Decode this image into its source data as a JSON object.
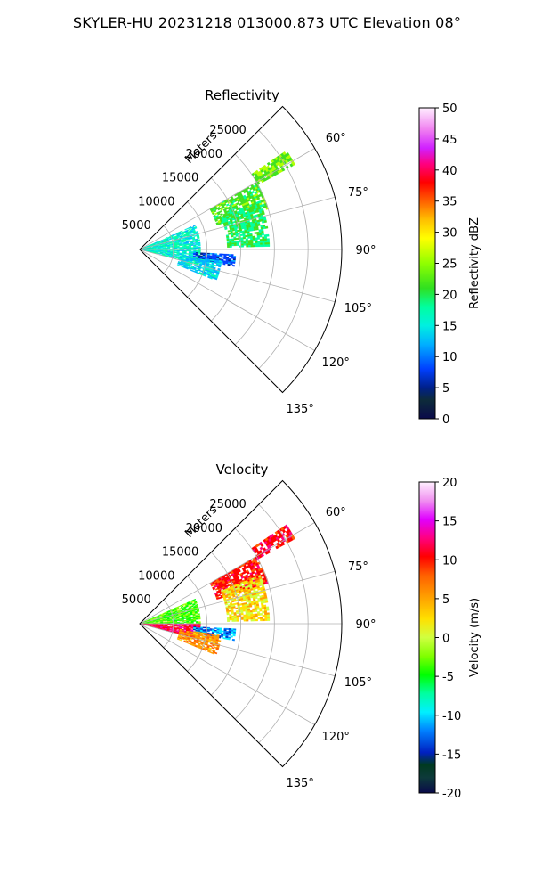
{
  "figure": {
    "suptitle": "SKYLER-HU  20231218  013000.873 UTC Elevation 08°"
  },
  "chart_data": [
    {
      "type": "heatmap",
      "projection": "polar-sector",
      "title": "Reflectivity",
      "radial_axis_label": "Meters",
      "radial_ticks": [
        5000,
        10000,
        15000,
        20000,
        25000
      ],
      "radial_range": [
        0,
        30000
      ],
      "angle_ticks": [
        "60°",
        "75°",
        "90°",
        "105°",
        "120°",
        "135°"
      ],
      "angle_tick_values": [
        60,
        75,
        90,
        105,
        120,
        135
      ],
      "angle_range": [
        45,
        135
      ],
      "grid": true,
      "colorbar": {
        "label": "Reflectivity dBZ",
        "range": [
          0,
          50
        ],
        "ticks": [
          0,
          5,
          10,
          15,
          20,
          25,
          30,
          35,
          40,
          45,
          50
        ],
        "colormap": "pyart_HomeyerRainbow"
      },
      "echo_regions": [
        {
          "az_range": [
            56,
            61
          ],
          "range_m": [
            20000,
            26000
          ],
          "value_dbz": 24
        },
        {
          "az_range": [
            60,
            72
          ],
          "range_m": [
            12000,
            20000
          ],
          "value_dbz": 22
        },
        {
          "az_range": [
            68,
            88
          ],
          "range_m": [
            13000,
            19000
          ],
          "value_dbz": 20
        },
        {
          "az_range": [
            66,
            104
          ],
          "range_m": [
            0,
            9000
          ],
          "value_dbz": 17
        },
        {
          "az_range": [
            93,
            100
          ],
          "range_m": [
            8000,
            14000
          ],
          "value_dbz": 10
        },
        {
          "az_range": [
            98,
            112
          ],
          "range_m": [
            6000,
            12000
          ],
          "value_dbz": 15
        }
      ]
    },
    {
      "type": "heatmap",
      "projection": "polar-sector",
      "title": "Velocity",
      "radial_axis_label": "Meters",
      "radial_ticks": [
        5000,
        10000,
        15000,
        20000,
        25000
      ],
      "radial_range": [
        0,
        30000
      ],
      "angle_ticks": [
        "60°",
        "75°",
        "90°",
        "105°",
        "120°",
        "135°"
      ],
      "angle_tick_values": [
        60,
        75,
        90,
        105,
        120,
        135
      ],
      "angle_range": [
        45,
        135
      ],
      "grid": true,
      "colorbar": {
        "label": "Velocity (m/s)",
        "range": [
          -20,
          20
        ],
        "ticks": [
          -20,
          -15,
          -10,
          -5,
          0,
          5,
          10,
          15,
          20
        ],
        "colormap": "pyart_BuDRd18"
      },
      "echo_regions": [
        {
          "az_range": [
            56,
            61
          ],
          "range_m": [
            20000,
            26000
          ],
          "value_ms": 11
        },
        {
          "az_range": [
            60,
            72
          ],
          "range_m": [
            12000,
            20000
          ],
          "value_ms": 10
        },
        {
          "az_range": [
            68,
            88
          ],
          "range_m": [
            13000,
            19000
          ],
          "value_ms": 2
        },
        {
          "az_range": [
            66,
            90
          ],
          "range_m": [
            0,
            9000
          ],
          "value_ms": -3
        },
        {
          "az_range": [
            90,
            104
          ],
          "range_m": [
            0,
            9000
          ],
          "value_ms": 12
        },
        {
          "az_range": [
            93,
            100
          ],
          "range_m": [
            8000,
            14000
          ],
          "value_ms": -12
        },
        {
          "az_range": [
            98,
            112
          ],
          "range_m": [
            6000,
            12000
          ],
          "value_ms": 5
        }
      ]
    }
  ]
}
